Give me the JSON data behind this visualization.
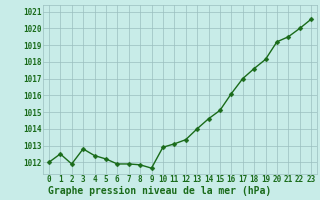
{
  "x": [
    0,
    1,
    2,
    3,
    4,
    5,
    6,
    7,
    8,
    9,
    10,
    11,
    12,
    13,
    14,
    15,
    16,
    17,
    18,
    19,
    20,
    21,
    22,
    23
  ],
  "y": [
    1012.0,
    1012.5,
    1011.9,
    1012.8,
    1012.4,
    1012.2,
    1011.9,
    1011.9,
    1011.85,
    1011.65,
    1012.9,
    1013.1,
    1013.35,
    1014.0,
    1014.6,
    1015.1,
    1016.1,
    1017.0,
    1017.6,
    1018.15,
    1019.2,
    1019.5,
    1020.0,
    1020.55
  ],
  "line_color": "#1a6b1a",
  "marker": "D",
  "marker_size": 2.5,
  "linewidth": 1.0,
  "bg_color": "#c8ece8",
  "grid_color": "#9bbfbf",
  "xlabel": "Graphe pression niveau de la mer (hPa)",
  "xlabel_color": "#1a6b1a",
  "xlabel_fontsize": 7,
  "tick_color": "#1a6b1a",
  "tick_fontsize": 5.5,
  "ytick_values": [
    1012,
    1013,
    1014,
    1015,
    1016,
    1017,
    1018,
    1019,
    1020,
    1021
  ],
  "ylim": [
    1011.3,
    1021.4
  ],
  "xlim": [
    -0.5,
    23.5
  ],
  "xtick_labels": [
    "0",
    "1",
    "2",
    "3",
    "4",
    "5",
    "6",
    "7",
    "8",
    "9",
    "10",
    "11",
    "12",
    "13",
    "14",
    "15",
    "16",
    "17",
    "18",
    "19",
    "20",
    "21",
    "22",
    "23"
  ]
}
